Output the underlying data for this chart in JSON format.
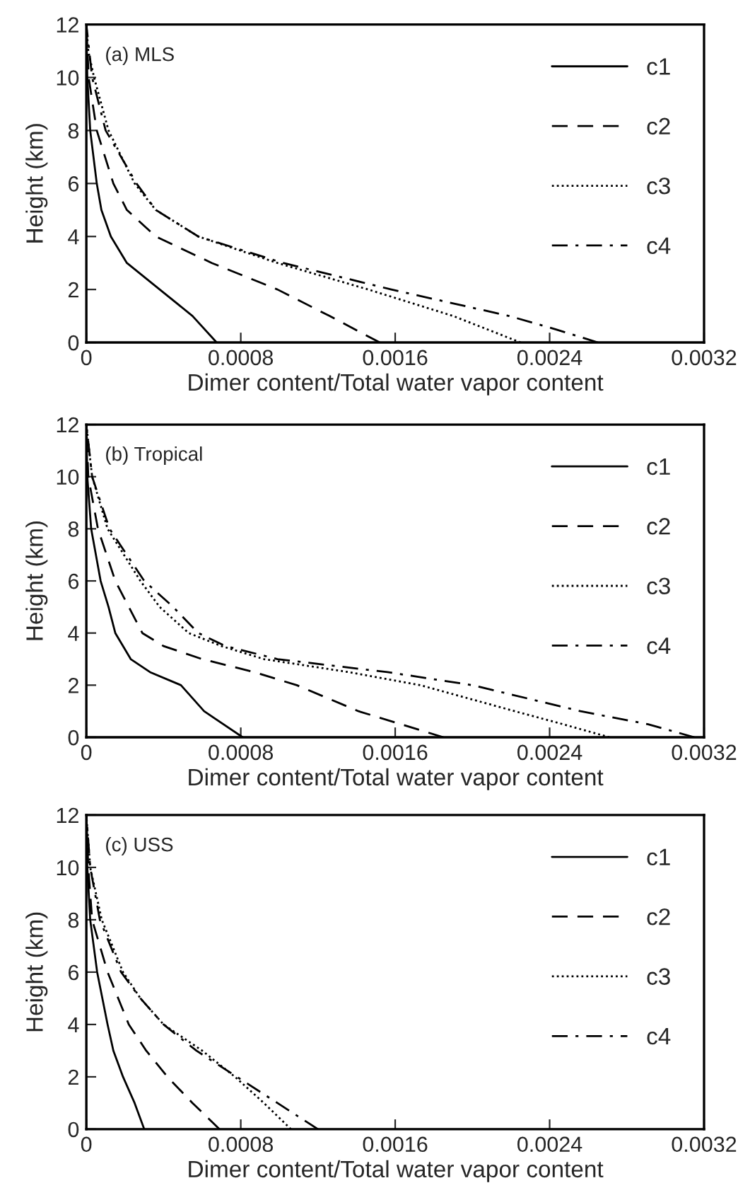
{
  "chart_data": [
    {
      "type": "line",
      "title": "(a) MLS",
      "xlabel": "Dimer content/Total water vapor content",
      "ylabel": "Height (km)",
      "xlim": [
        0,
        0.0032
      ],
      "xticks": [
        0,
        0.0008,
        0.0016,
        0.0024,
        0.0032
      ],
      "ylim": [
        0,
        12
      ],
      "yticks": [
        0,
        2,
        4,
        6,
        8,
        10,
        12
      ],
      "legend": "top right",
      "grid": false,
      "series": [
        {
          "name": "c1",
          "color": "#000000",
          "line_style": "solid",
          "x": [
            0.000675,
            0.00055,
            0.00038,
            0.00021,
            0.000127,
            7.8e-05,
            5.4e-05,
            2e-05,
            5e-06,
            0
          ],
          "values": [
            0,
            1,
            2,
            3,
            4,
            5,
            6,
            8,
            10,
            12
          ]
        },
        {
          "name": "c2",
          "color": "#000000",
          "line_style": "dashed",
          "x": [
            0.00152,
            0.00126,
            0.00099,
            0.00065,
            0.00036,
            0.00021,
            0.00014,
            5.4e-05,
            1.2e-05,
            0
          ],
          "values": [
            0,
            1,
            2,
            3,
            4,
            5,
            6,
            8,
            10,
            12
          ]
        },
        {
          "name": "c3",
          "color": "#000000",
          "line_style": "dotted",
          "x": [
            0.00225,
            0.0019,
            0.00146,
            0.00099,
            0.00058,
            0.00036,
            0.00025,
            0.000115,
            4e-05,
            1e-05,
            0
          ],
          "values": [
            0,
            1,
            2,
            3,
            4,
            5,
            6,
            8,
            10,
            11,
            12
          ]
        },
        {
          "name": "c4",
          "color": "#000000",
          "line_style": "dashdot",
          "x": [
            0.00265,
            0.00243,
            0.00219,
            0.00158,
            0.00102,
            0.00058,
            0.00036,
            0.00026,
            0.0001,
            3e-05,
            0
          ],
          "values": [
            0,
            0.5,
            1,
            2,
            3,
            4,
            5,
            6,
            8,
            10,
            12
          ]
        }
      ]
    },
    {
      "type": "line",
      "title": "(b) Tropical",
      "xlabel": "Dimer content/Total water vapor content",
      "ylabel": "Height (km)",
      "xlim": [
        0,
        0.0032
      ],
      "xticks": [
        0,
        0.0008,
        0.0016,
        0.0024,
        0.0032
      ],
      "ylim": [
        0,
        12
      ],
      "yticks": [
        0,
        2,
        4,
        6,
        8,
        10,
        12
      ],
      "legend": "top right",
      "grid": false,
      "series": [
        {
          "name": "c1",
          "color": "#000000",
          "line_style": "solid",
          "x": [
            0.00081,
            0.00061,
            0.00049,
            0.00033,
            0.00023,
            0.00015,
            0.000115,
            7.4e-05,
            2.5e-05,
            5e-06,
            0
          ],
          "values": [
            0,
            1,
            2,
            2.5,
            3,
            4,
            5,
            6,
            8,
            10,
            12
          ]
        },
        {
          "name": "c2",
          "color": "#000000",
          "line_style": "dashed",
          "x": [
            0.00185,
            0.00141,
            0.00109,
            0.00087,
            0.0006,
            0.0004,
            0.00029,
            0.00022,
            0.00015,
            6e-05,
            1e-05,
            0
          ],
          "values": [
            0,
            1,
            2,
            2.5,
            3,
            3.5,
            4,
            5,
            6,
            8,
            10,
            12
          ]
        },
        {
          "name": "c3",
          "color": "#000000",
          "line_style": "dotted",
          "x": [
            0.00271,
            0.00247,
            0.00222,
            0.00173,
            0.00136,
            0.00092,
            0.0007,
            0.00053,
            0.00038,
            0.00028,
            0.00011,
            3e-05,
            0
          ],
          "values": [
            0,
            0.5,
            1,
            2,
            2.5,
            3,
            3.5,
            4,
            5,
            6,
            8,
            10,
            12
          ]
        },
        {
          "name": "c4",
          "color": "#000000",
          "line_style": "dashdot",
          "x": [
            0.00315,
            0.00291,
            0.00256,
            0.002,
            0.00156,
            0.00099,
            0.00072,
            0.00058,
            0.00045,
            0.0003,
            0.00012,
            3e-05,
            0
          ],
          "values": [
            0,
            0.5,
            1,
            2,
            2.5,
            3,
            3.5,
            4,
            5,
            6,
            8,
            10,
            12
          ]
        }
      ]
    },
    {
      "type": "line",
      "title": "(c) USS",
      "xlabel": "Dimer content/Total water vapor content",
      "ylabel": "Height (km)",
      "xlim": [
        0,
        0.0032
      ],
      "xticks": [
        0,
        0.0008,
        0.0016,
        0.0024,
        0.0032
      ],
      "ylim": [
        0,
        12
      ],
      "yticks": [
        0,
        2,
        4,
        6,
        8,
        10,
        12
      ],
      "legend": "top right",
      "grid": false,
      "series": [
        {
          "name": "c1",
          "color": "#000000",
          "line_style": "solid",
          "x": [
            0.0003,
            0.00025,
            0.00019,
            0.00014,
            0.00011,
            5.6e-05,
            2e-05,
            5e-06,
            0
          ],
          "values": [
            0,
            1,
            2,
            3,
            4,
            6,
            8,
            10,
            12
          ]
        },
        {
          "name": "c2",
          "color": "#000000",
          "line_style": "dashed",
          "x": [
            0.00069,
            0.00055,
            0.00042,
            0.00031,
            0.00022,
            0.00011,
            3e-05,
            1e-05,
            0
          ],
          "values": [
            0,
            1,
            2,
            3,
            4,
            6,
            8,
            10,
            12
          ]
        },
        {
          "name": "c3",
          "color": "#000000",
          "line_style": "dotted",
          "x": [
            0.00106,
            0.00092,
            0.00077,
            0.0006,
            0.0004,
            0.00028,
            0.00019,
            8e-05,
            2e-05,
            0
          ],
          "values": [
            0,
            1,
            2,
            3,
            4,
            5,
            6,
            8,
            10,
            12
          ]
        },
        {
          "name": "c4",
          "color": "#000000",
          "line_style": "dashdot",
          "x": [
            0.0012,
            0.00099,
            0.00078,
            0.00057,
            0.0004,
            0.00028,
            0.00018,
            7e-05,
            2e-05,
            0
          ],
          "values": [
            0,
            1,
            2,
            3,
            4,
            5,
            6,
            8,
            10,
            12
          ]
        }
      ]
    }
  ]
}
